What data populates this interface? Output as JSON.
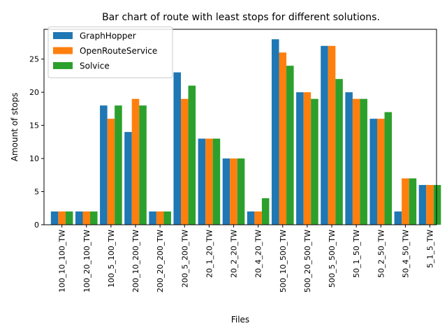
{
  "chart_data": {
    "type": "bar",
    "title": "Bar chart of route with least stops for different solutions.",
    "xlabel": "Files",
    "ylabel": "Amount of stops",
    "ylim": [
      0,
      29.5
    ],
    "yticks": [
      0,
      5,
      10,
      15,
      20,
      25
    ],
    "grid": false,
    "legend_position": "top-left",
    "categories": [
      "100_10_100_TW",
      "100_20_100_TW",
      "100_5_100_TW",
      "200_10_200_TW",
      "200_20_200_TW",
      "200_5_200_TW",
      "20_1_20_TW",
      "20_2_20_TW",
      "20_4_20_TW",
      "500_10_500_TW",
      "500_20_500_TW",
      "500_5_500_TW",
      "50_1_50_TW",
      "50_2_50_TW",
      "50_4_50_TW",
      "5_1_5_TW"
    ],
    "series": [
      {
        "name": "GraphHopper",
        "color": "#1f77b4",
        "values": [
          2,
          2,
          18,
          14,
          2,
          23,
          13,
          10,
          2,
          28,
          20,
          27,
          20,
          16,
          2,
          6
        ]
      },
      {
        "name": "OpenRouteService",
        "color": "#ff7f0e",
        "values": [
          2,
          2,
          16,
          19,
          2,
          19,
          13,
          10,
          2,
          26,
          20,
          27,
          19,
          16,
          7,
          6
        ]
      },
      {
        "name": "Solvice",
        "color": "#2ca02c",
        "values": [
          2,
          2,
          18,
          18,
          2,
          21,
          13,
          10,
          4,
          24,
          19,
          22,
          19,
          17,
          7,
          6
        ]
      }
    ]
  }
}
